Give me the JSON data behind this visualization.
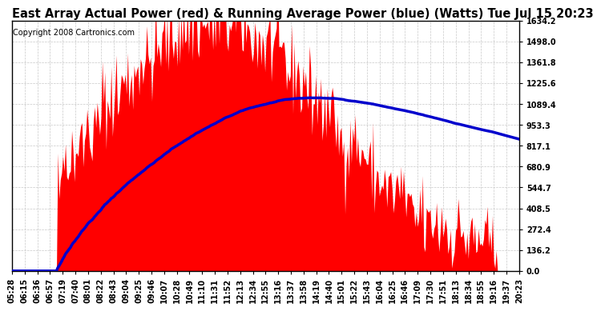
{
  "title": "East Array Actual Power (red) & Running Average Power (blue) (Watts) Tue Jul 15 20:23",
  "copyright_text": "Copyright 2008 Cartronics.com",
  "y_ticks": [
    0.0,
    136.2,
    272.4,
    408.5,
    544.7,
    680.9,
    817.1,
    953.3,
    1089.4,
    1225.6,
    1361.8,
    1498.0,
    1634.2
  ],
  "y_max": 1634.2,
  "x_labels": [
    "05:28",
    "06:15",
    "06:36",
    "06:57",
    "07:19",
    "07:40",
    "08:01",
    "08:22",
    "08:43",
    "09:04",
    "09:25",
    "09:46",
    "10:07",
    "10:28",
    "10:49",
    "11:10",
    "11:31",
    "11:52",
    "12:13",
    "12:34",
    "12:55",
    "13:16",
    "13:37",
    "13:58",
    "14:19",
    "14:40",
    "15:01",
    "15:22",
    "15:43",
    "16:04",
    "16:25",
    "16:46",
    "17:09",
    "17:30",
    "17:51",
    "18:13",
    "18:34",
    "18:55",
    "19:16",
    "19:37",
    "20:23"
  ],
  "background_color": "#ffffff",
  "plot_bg_color": "#ffffff",
  "grid_color": "#c8c8c8",
  "actual_color": "#ff0000",
  "avg_color": "#0000cc",
  "title_fontsize": 10.5,
  "copyright_fontsize": 7,
  "tick_fontsize": 7
}
